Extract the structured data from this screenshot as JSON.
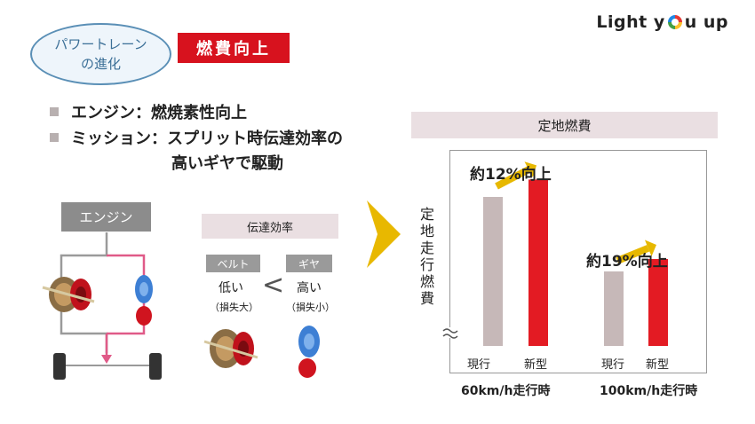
{
  "header": {
    "pill_line1": "パワートレーン",
    "pill_line2": "の進化",
    "tag": "燃費向上",
    "logo_part1": "Light y",
    "logo_part2": "u up"
  },
  "bullets": [
    {
      "line1": "エンジン：燃焼素性向上"
    },
    {
      "line1": "ミッション：スプリット時伝達効率の",
      "line2": "高いギヤで駆動"
    }
  ],
  "diagram": {
    "engine_label": "エンジン",
    "efficiency_header": "伝達効率",
    "belt_tag": "ベルト",
    "gear_tag": "ギヤ",
    "belt_value": "低い",
    "gear_value": "高い",
    "compare_symbol": "<",
    "belt_loss": "（損失大）",
    "gear_loss": "（損失小）"
  },
  "chart_data": {
    "type": "bar",
    "title": "定地燃費",
    "ylabel": "定地走行燃費",
    "categories": [
      "60km/h走行時",
      "100km/h走行時"
    ],
    "bar_labels": [
      "現行",
      "新型"
    ],
    "series": [
      {
        "name": "現行",
        "values": [
          60,
          30
        ]
      },
      {
        "name": "新型",
        "values": [
          67,
          35
        ]
      }
    ],
    "ylim": [
      0,
      75
    ],
    "annotations": [
      "約12%向上",
      "約19%向上"
    ],
    "colors": {
      "current": "#c6b8b8",
      "new": "#e31b23",
      "arrow": "#e7b800"
    }
  }
}
